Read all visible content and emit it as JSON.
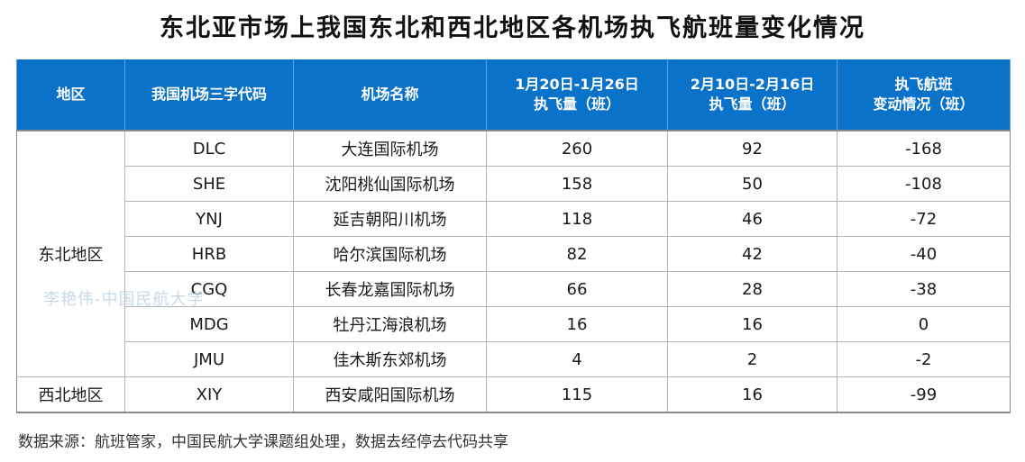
{
  "title": "东北亚市场上我国东北和西北地区各机场执飞航班量变化情况",
  "headers": {
    "region": "地区",
    "code": "我国机场三字代码",
    "name": "机场名称",
    "period1": [
      "1月20日-1月26日",
      "执飞量（班）"
    ],
    "period2": [
      "2月10日-2月16日",
      "执飞量（班）"
    ],
    "change": [
      "执飞航班",
      "变动情况（班）"
    ]
  },
  "regions": {
    "northeast": "东北地区",
    "northwest": "西北地区"
  },
  "rows": [
    {
      "code": "DLC",
      "name": "大连国际机场",
      "p1": "260",
      "p2": "92",
      "change": "-168"
    },
    {
      "code": "SHE",
      "name": "沈阳桃仙国际机场",
      "p1": "158",
      "p2": "50",
      "change": "-108"
    },
    {
      "code": "YNJ",
      "name": "延吉朝阳川机场",
      "p1": "118",
      "p2": "46",
      "change": "-72"
    },
    {
      "code": "HRB",
      "name": "哈尔滨国际机场",
      "p1": "82",
      "p2": "42",
      "change": "-40"
    },
    {
      "code": "CGQ",
      "name": "长春龙嘉国际机场",
      "p1": "66",
      "p2": "28",
      "change": "-38"
    },
    {
      "code": "MDG",
      "name": "牡丹江海浪机场",
      "p1": "16",
      "p2": "16",
      "change": "0"
    },
    {
      "code": "JMU",
      "name": "佳木斯东郊机场",
      "p1": "4",
      "p2": "2",
      "change": "-2"
    },
    {
      "code": "XIY",
      "name": "西安咸阳国际机场",
      "p1": "115",
      "p2": "16",
      "change": "-99"
    }
  ],
  "watermark": "李艳伟-中国民航大学",
  "source": "数据来源：航班管家，中国民航大学课题组处理，数据去经停去代码共享",
  "colors": {
    "header_bg": "#0b72c9",
    "header_text": "#ffffff",
    "grid": "#b3b3b3"
  }
}
